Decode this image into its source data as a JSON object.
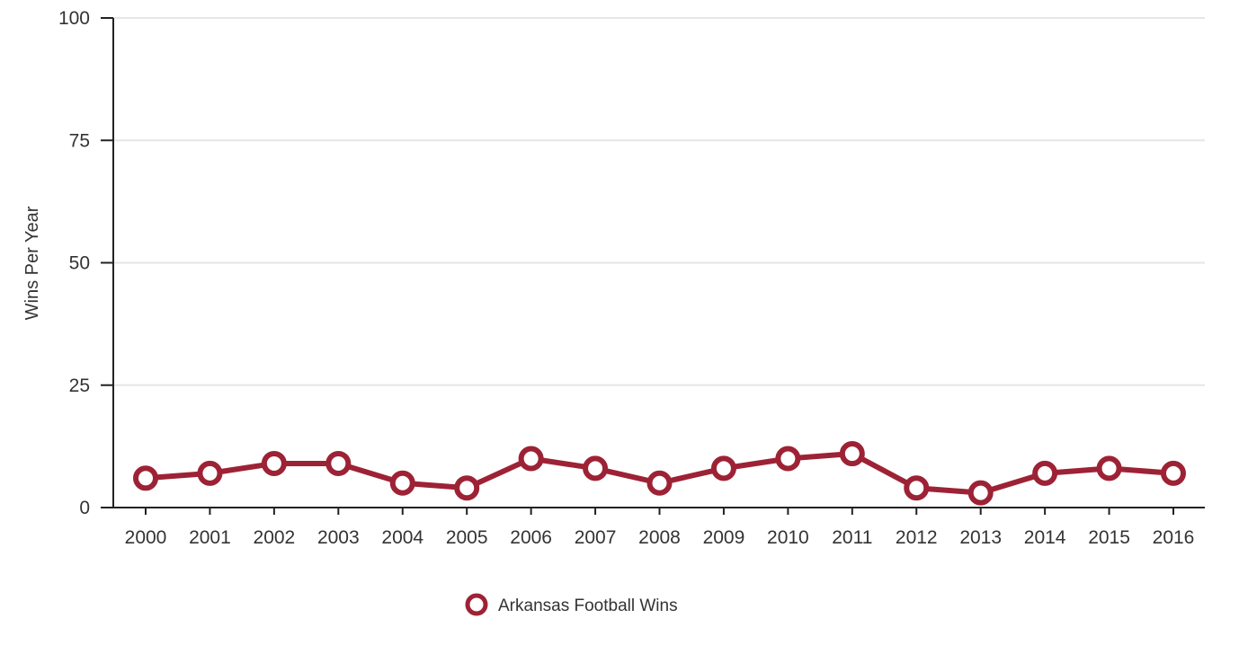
{
  "chart_data": {
    "type": "line",
    "title": "",
    "xlabel": "",
    "ylabel": "Wins Per Year",
    "ylim": [
      0,
      100
    ],
    "yticks": [
      0,
      25,
      50,
      75,
      100
    ],
    "categories": [
      "2000",
      "2001",
      "2002",
      "2003",
      "2004",
      "2005",
      "2006",
      "2007",
      "2008",
      "2009",
      "2010",
      "2011",
      "2012",
      "2013",
      "2014",
      "2015",
      "2016"
    ],
    "series": [
      {
        "name": "Arkansas Football Wins",
        "values": [
          6,
          7,
          9,
          9,
          5,
          4,
          10,
          8,
          5,
          8,
          10,
          11,
          4,
          3,
          7,
          8,
          7
        ],
        "color": "#9d2235"
      }
    ],
    "grid": true,
    "legend_position": "bottom-center"
  }
}
